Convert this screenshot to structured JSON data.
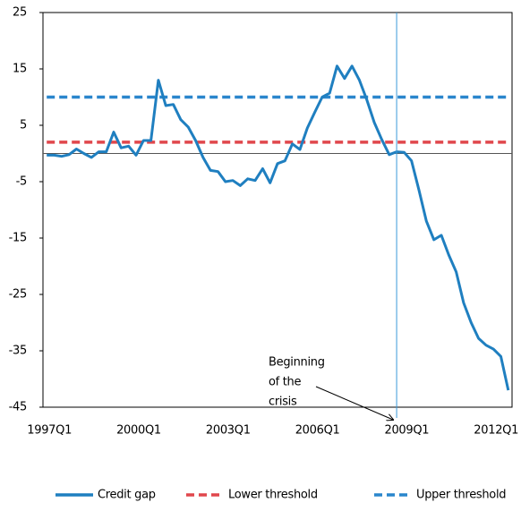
{
  "chart_data": {
    "type": "line",
    "categories": [
      "1997Q1",
      null,
      null,
      null,
      null,
      null,
      null,
      null,
      null,
      null,
      null,
      null,
      "2000Q1",
      null,
      null,
      null,
      null,
      null,
      null,
      null,
      null,
      null,
      null,
      null,
      "2003Q1",
      null,
      null,
      null,
      null,
      null,
      null,
      null,
      null,
      null,
      null,
      null,
      "2006Q1",
      null,
      null,
      null,
      null,
      null,
      null,
      null,
      null,
      null,
      null,
      null,
      "2009Q1",
      null,
      null,
      null,
      null,
      null,
      null,
      null,
      null,
      null,
      null,
      null,
      "2012Q1",
      null,
      null
    ],
    "series": [
      {
        "name": "Credit gap",
        "color": "#1f7fc0",
        "dash": false,
        "values": [
          -0.3,
          -0.3,
          -0.5,
          -0.2,
          0.8,
          0,
          -0.7,
          0.3,
          0.3,
          3.8,
          1,
          1.3,
          -0.3,
          2.3,
          2.3,
          13,
          8.5,
          8.7,
          6,
          4.7,
          2.3,
          -0.7,
          -3,
          -3.2,
          -5,
          -4.8,
          -5.7,
          -4.5,
          -4.8,
          -2.7,
          -5.2,
          -1.8,
          -1.3,
          1.7,
          0.7,
          4.5,
          7.3,
          10,
          10.7,
          15.5,
          13.3,
          15.5,
          13,
          9.5,
          5.5,
          2.5,
          -0.2,
          0.3,
          0.2,
          -1.3,
          -6.5,
          -12,
          -15.3,
          -14.5,
          -18,
          -21,
          -26.5,
          -30,
          -32.8,
          -34,
          -34.7,
          -36,
          -42
        ]
      },
      {
        "name": "Lower threshold",
        "color": "#e0474c",
        "dash": true,
        "values": [
          2,
          2,
          2,
          2,
          2,
          2,
          2,
          2,
          2,
          2,
          2,
          2,
          2,
          2,
          2,
          2,
          2,
          2,
          2,
          2,
          2,
          2,
          2,
          2,
          2,
          2,
          2,
          2,
          2,
          2,
          2,
          2,
          2,
          2,
          2,
          2,
          2,
          2,
          2,
          2,
          2,
          2,
          2,
          2,
          2,
          2,
          2,
          2,
          2,
          2,
          2,
          2,
          2,
          2,
          2,
          2,
          2,
          2,
          2,
          2,
          2,
          2,
          2
        ]
      },
      {
        "name": "Upper threshold",
        "color": "#2a86cc",
        "dash": true,
        "values": [
          10,
          10,
          10,
          10,
          10,
          10,
          10,
          10,
          10,
          10,
          10,
          10,
          10,
          10,
          10,
          10,
          10,
          10,
          10,
          10,
          10,
          10,
          10,
          10,
          10,
          10,
          10,
          10,
          10,
          10,
          10,
          10,
          10,
          10,
          10,
          10,
          10,
          10,
          10,
          10,
          10,
          10,
          10,
          10,
          10,
          10,
          10,
          10,
          10,
          10,
          10,
          10,
          10,
          10,
          10,
          10,
          10,
          10,
          10,
          10,
          10,
          10,
          10
        ]
      }
    ],
    "ylim": [
      -45,
      25
    ],
    "yticks": [
      25,
      15,
      5,
      -5,
      -15,
      -25,
      -35,
      -45
    ],
    "annotation": {
      "lines": [
        "Beginning",
        "of the",
        "crisis"
      ],
      "x": 47,
      "color": "#3a9ad9"
    },
    "legend": "bottom"
  }
}
